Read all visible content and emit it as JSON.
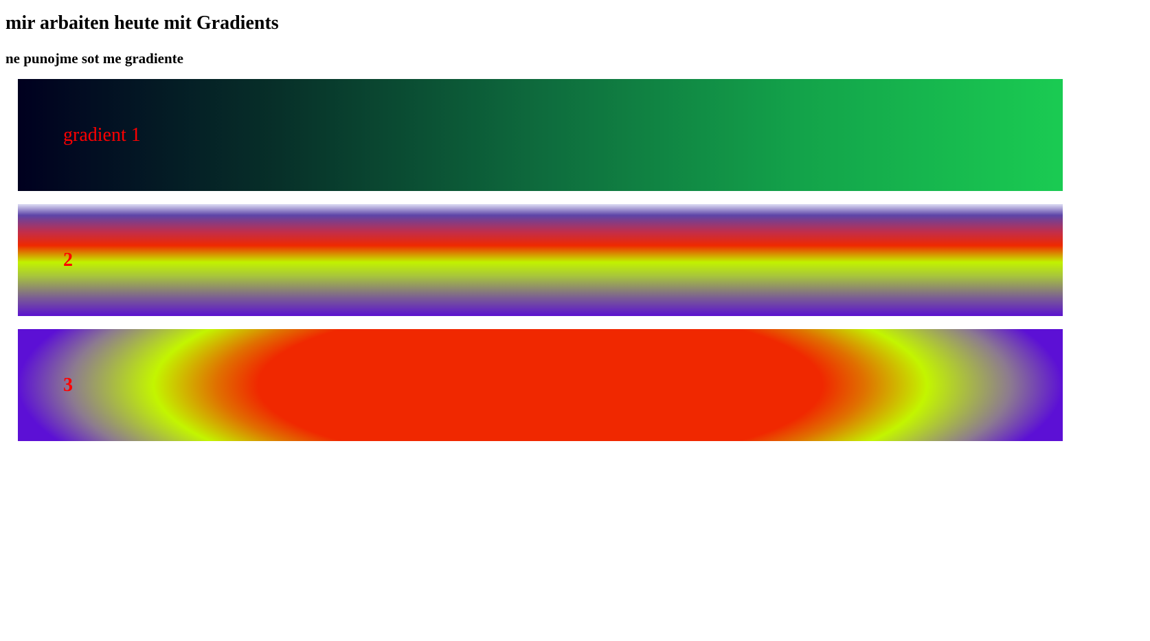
{
  "heading": "mir arbaiten heute mit Gradients",
  "subheading": "ne punojme sot me gradiente",
  "gradients": [
    {
      "label": "gradient 1",
      "colors": [
        "#00001f",
        "#073029",
        "#0e6b3d",
        "#13a34a",
        "#1acb52"
      ]
    },
    {
      "label": "2",
      "colors": [
        "#dfdff5",
        "#5d45a8",
        "#ef2900",
        "#c2f200",
        "#5b12cf"
      ]
    },
    {
      "label": "3",
      "colors": [
        "#f02800",
        "#e07000",
        "#c3f500",
        "#5c10d5"
      ]
    }
  ]
}
